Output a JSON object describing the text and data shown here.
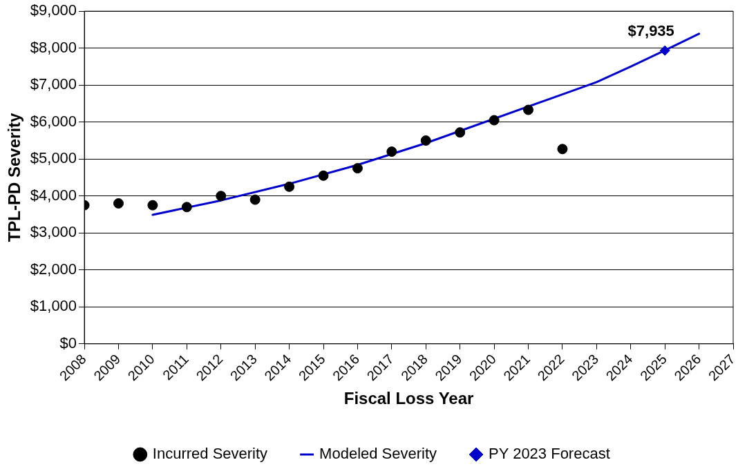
{
  "chart_data": {
    "type": "scatter",
    "xlabel": "Fiscal Loss Year",
    "ylabel": "TPL-PD Severity",
    "xlim": [
      2008,
      2027
    ],
    "xticks": [
      2008,
      2009,
      2010,
      2011,
      2012,
      2013,
      2014,
      2015,
      2016,
      2017,
      2018,
      2019,
      2020,
      2021,
      2022,
      2023,
      2024,
      2025,
      2026,
      2027
    ],
    "ylim": [
      0,
      9000
    ],
    "yticks": [
      {
        "value": 0,
        "label": "$0"
      },
      {
        "value": 1000,
        "label": "$1,000"
      },
      {
        "value": 2000,
        "label": "$2,000"
      },
      {
        "value": 3000,
        "label": "$3,000"
      },
      {
        "value": 4000,
        "label": "$4,000"
      },
      {
        "value": 5000,
        "label": "$5,000"
      },
      {
        "value": 6000,
        "label": "$6,000"
      },
      {
        "value": 7000,
        "label": "$7,000"
      },
      {
        "value": 8000,
        "label": "$8,000"
      },
      {
        "value": 9000,
        "label": "$9,000"
      }
    ],
    "grid": "y",
    "legend": "bottom",
    "series": [
      {
        "name": "Incurred Severity",
        "type": "scatter",
        "marker": "circle",
        "color": "#000000",
        "x": [
          2008,
          2009,
          2010,
          2011,
          2012,
          2013,
          2014,
          2015,
          2016,
          2017,
          2018,
          2019,
          2020,
          2021,
          2022
        ],
        "values": [
          3750,
          3800,
          3750,
          3700,
          4000,
          3900,
          4250,
          4550,
          4750,
          5200,
          5500,
          5720,
          6050,
          6330,
          5270
        ]
      },
      {
        "name": "Modeled Severity",
        "type": "line",
        "marker": "none",
        "line_style": "solid",
        "color": "#0000cc",
        "x": [
          2010,
          2012,
          2014,
          2016,
          2018,
          2022,
          2023,
          2024,
          2025,
          2026
        ],
        "values": [
          3490,
          3880,
          4330,
          4840,
          5430,
          6750,
          7080,
          7500,
          7940,
          8390
        ]
      },
      {
        "name": "PY 2023 Forecast",
        "type": "scatter",
        "marker": "diamond",
        "color": "#0000cc",
        "x": [
          2025
        ],
        "values": [
          7935
        ],
        "value_labels": [
          "$7,935"
        ]
      }
    ]
  }
}
